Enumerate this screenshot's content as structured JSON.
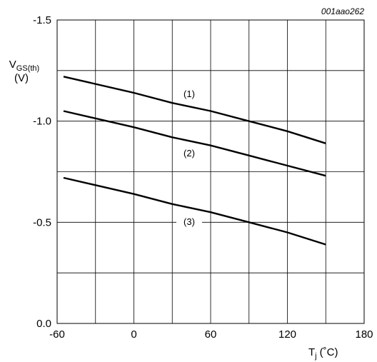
{
  "figure_id": "001aao262",
  "chart_data": {
    "type": "line",
    "ylabel": {
      "main": "V",
      "sub": "GS(th)",
      "unit": "(V)"
    },
    "xlabel": {
      "main": "T",
      "sub": "j",
      "unit": "(˚C)"
    },
    "xlim": [
      -60,
      180
    ],
    "ylim": [
      0.0,
      -1.5
    ],
    "x_ticks": [
      "-60",
      "0",
      "60",
      "120",
      "180"
    ],
    "y_ticks": [
      "0.0",
      "-0.5",
      "-1.0",
      "-1.5"
    ],
    "grid": true,
    "series": [
      {
        "label": "(1)",
        "x": [
          -55,
          0,
          30,
          60,
          90,
          120,
          150
        ],
        "y": [
          -1.22,
          -1.14,
          -1.09,
          -1.05,
          -1.0,
          -0.95,
          -0.89
        ]
      },
      {
        "label": "(2)",
        "x": [
          -55,
          0,
          30,
          60,
          90,
          120,
          150
        ],
        "y": [
          -1.05,
          -0.97,
          -0.92,
          -0.88,
          -0.83,
          -0.78,
          -0.73
        ]
      },
      {
        "label": "(3)",
        "x": [
          -55,
          0,
          30,
          60,
          90,
          120,
          150
        ],
        "y": [
          -0.72,
          -0.64,
          -0.59,
          -0.55,
          -0.5,
          -0.45,
          -0.39
        ]
      }
    ]
  }
}
